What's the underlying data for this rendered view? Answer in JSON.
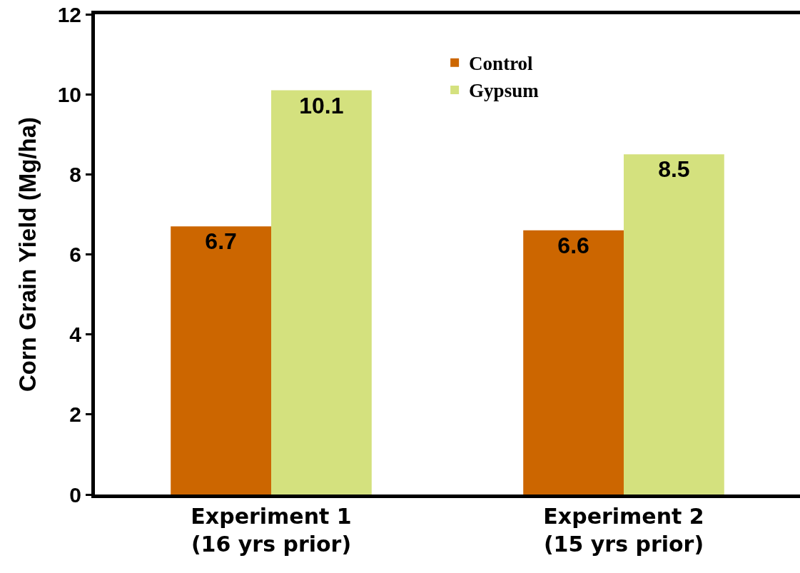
{
  "chart_data": {
    "type": "bar",
    "ylabel": "Corn Grain Yield (Mg/ha)",
    "categories": [
      "Experiment 1\n(16 yrs prior)",
      "Experiment 2\n(15 yrs prior)"
    ],
    "series": [
      {
        "name": "Control",
        "color": "#cc6600",
        "values": [
          6.7,
          6.6
        ]
      },
      {
        "name": "Gypsum",
        "color": "#d4e17e",
        "values": [
          10.1,
          8.5
        ]
      }
    ],
    "ylim": [
      0,
      12
    ],
    "yticks": [
      0,
      2,
      4,
      6,
      8,
      10,
      12
    ],
    "data_labels": true,
    "legend": "top"
  }
}
